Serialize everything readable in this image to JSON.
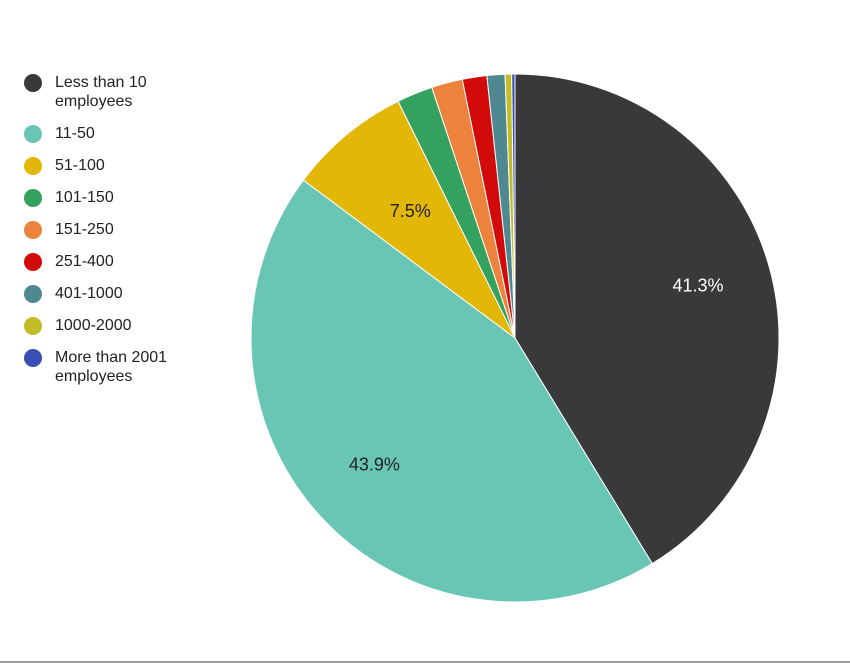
{
  "chart_data": {
    "type": "pie",
    "title": "",
    "slices": [
      {
        "label": "Less than 10 employees",
        "value": 41.3,
        "color": "#39393b",
        "show_label": true,
        "label_text": "41.3%",
        "label_color": "#ffffff"
      },
      {
        "label": "11-50",
        "value": 43.9,
        "color": "#69c6b5",
        "show_label": true,
        "label_text": "43.9%",
        "label_color": "#222222"
      },
      {
        "label": "51-100",
        "value": 7.5,
        "color": "#e2b707",
        "show_label": true,
        "label_text": "7.5%",
        "label_color": "#222222"
      },
      {
        "label": "101-150",
        "value": 2.2,
        "color": "#34a15e",
        "show_label": false,
        "label_text": "",
        "label_color": "#222222"
      },
      {
        "label": "151-250",
        "value": 1.9,
        "color": "#ed823d",
        "show_label": false,
        "label_text": "",
        "label_color": "#222222"
      },
      {
        "label": "251-400",
        "value": 1.5,
        "color": "#d20a0a",
        "show_label": false,
        "label_text": "",
        "label_color": "#222222"
      },
      {
        "label": "401-1000",
        "value": 1.1,
        "color": "#4e8890",
        "show_label": false,
        "label_text": "",
        "label_color": "#222222"
      },
      {
        "label": "1000-2000",
        "value": 0.4,
        "color": "#c2bd26",
        "show_label": false,
        "label_text": "",
        "label_color": "#222222"
      },
      {
        "label": "More than 2001 employees",
        "value": 0.2,
        "color": "#3a4fb5",
        "show_label": false,
        "label_text": "",
        "label_color": "#222222"
      }
    ],
    "legend_position": "left"
  }
}
